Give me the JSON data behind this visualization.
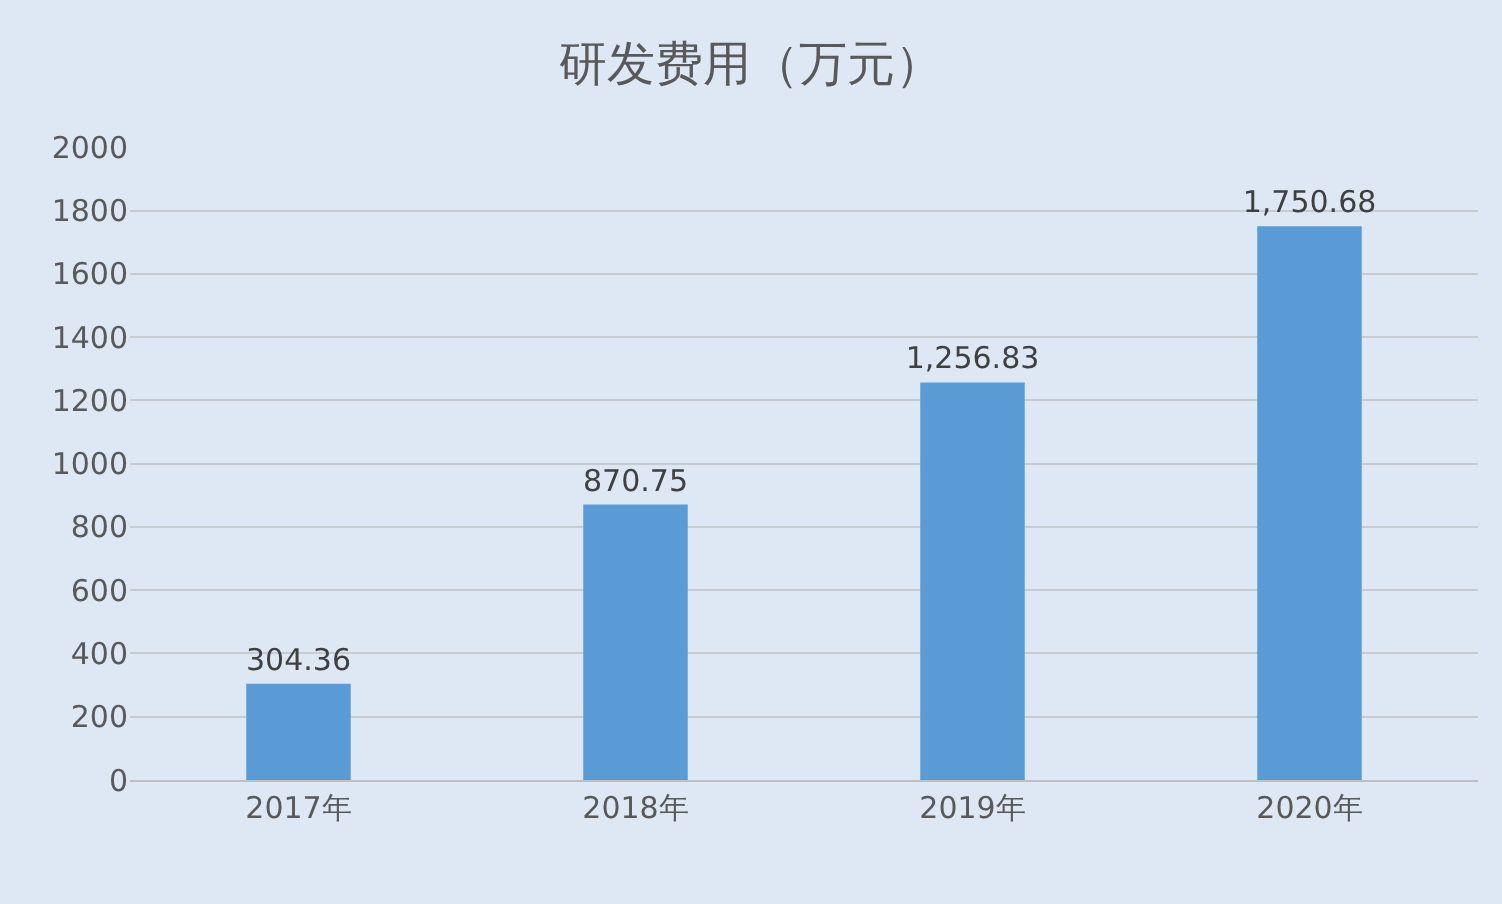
{
  "chart_data": {
    "type": "bar",
    "title": "研发费用（万元）",
    "categories": [
      "2017年",
      "2018年",
      "2019年",
      "2020年"
    ],
    "values": [
      304.36,
      870.75,
      1256.83,
      1750.68
    ],
    "value_labels": [
      "304.36",
      "870.75",
      "1,256.83",
      "1,750.68"
    ],
    "color": "#5b9bd5",
    "ylim": [
      0,
      2000
    ],
    "yticks": [
      0,
      200,
      400,
      600,
      800,
      1000,
      1200,
      1400,
      1600,
      1800,
      2000
    ],
    "grid": "y"
  }
}
